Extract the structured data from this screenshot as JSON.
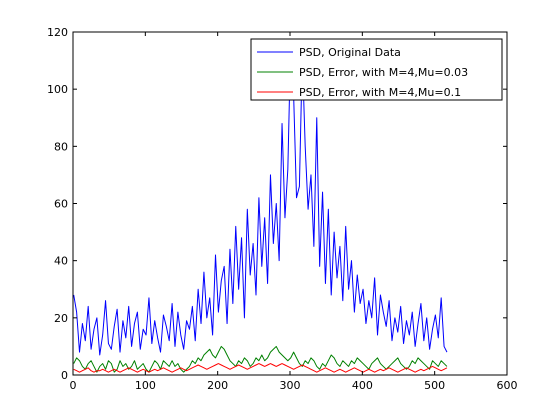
{
  "chart_data": {
    "type": "line",
    "title": "",
    "xlabel": "",
    "ylabel": "",
    "xlim": [
      0,
      600
    ],
    "ylim": [
      0,
      120
    ],
    "xticks": [
      0,
      100,
      200,
      300,
      400,
      500,
      600
    ],
    "yticks": [
      0,
      20,
      40,
      60,
      80,
      100,
      120
    ],
    "grid": false,
    "legend_position": "top-right",
    "series": [
      {
        "name": "PSD, Original Data",
        "color": "#0000ff",
        "x_start": 1,
        "x_step": 4,
        "values": [
          28,
          22,
          8,
          18,
          12,
          24,
          9,
          16,
          20,
          7,
          14,
          26,
          11,
          9,
          17,
          23,
          8,
          19,
          13,
          24,
          10,
          18,
          22,
          9,
          16,
          14,
          27,
          11,
          19,
          13,
          8,
          21,
          17,
          12,
          25,
          10,
          22,
          14,
          9,
          19,
          16,
          24,
          12,
          30,
          18,
          36,
          20,
          27,
          14,
          42,
          22,
          33,
          38,
          18,
          44,
          25,
          52,
          30,
          48,
          20,
          58,
          35,
          46,
          28,
          62,
          38,
          55,
          32,
          70,
          46,
          60,
          40,
          88,
          55,
          72,
          117,
          98,
          62,
          66,
          112,
          80,
          58,
          70,
          45,
          90,
          38,
          64,
          32,
          58,
          28,
          50,
          34,
          45,
          26,
          52,
          30,
          40,
          22,
          35,
          25,
          30,
          18,
          26,
          20,
          34,
          14,
          28,
          22,
          17,
          26,
          12,
          20,
          15,
          24,
          11,
          19,
          14,
          22,
          10,
          18,
          25,
          12,
          20,
          9,
          16,
          21,
          13,
          27,
          10,
          8
        ]
      },
      {
        "name": "PSD, Error, with M=4,Mu=0.03",
        "color": "#008000",
        "x_start": 1,
        "x_step": 4,
        "values": [
          4,
          6,
          5,
          3,
          2,
          4,
          5,
          3,
          1,
          3,
          4,
          2,
          5,
          4,
          1,
          2,
          5,
          3,
          4,
          2,
          3,
          5,
          2,
          3,
          4,
          2,
          1,
          3,
          5,
          4,
          2,
          5,
          4,
          3,
          5,
          3,
          4,
          2,
          1,
          2,
          3,
          5,
          4,
          6,
          5,
          7,
          8,
          9,
          7,
          6,
          8,
          10,
          9,
          7,
          5,
          4,
          3,
          5,
          4,
          6,
          5,
          3,
          4,
          6,
          5,
          7,
          5,
          6,
          8,
          9,
          10,
          8,
          7,
          6,
          5,
          6,
          8,
          6,
          4,
          3,
          5,
          4,
          6,
          5,
          3,
          2,
          4,
          3,
          5,
          7,
          6,
          4,
          3,
          5,
          4,
          3,
          5,
          4,
          6,
          5,
          4,
          3,
          2,
          4,
          5,
          6,
          4,
          3,
          2,
          3,
          4,
          5,
          6,
          4,
          3,
          2,
          3,
          5,
          4,
          6,
          5,
          4,
          3,
          2,
          5,
          4,
          3,
          5,
          4,
          3
        ]
      },
      {
        "name": "PSD, Error, with M=4,Mu=0.1",
        "color": "#ff0000",
        "x_start": 1,
        "x_step": 4,
        "values": [
          2,
          1.5,
          1,
          1.5,
          2,
          2.5,
          1.5,
          1,
          1.5,
          1.5,
          2,
          1.5,
          1,
          1.5,
          2,
          1.5,
          1,
          1.5,
          2,
          2.5,
          2,
          1.5,
          1,
          1.5,
          2,
          1.5,
          1,
          1.5,
          2,
          1.5,
          2,
          2.5,
          2,
          1.5,
          1,
          1.5,
          2,
          2.5,
          2,
          1.5,
          2,
          2.5,
          3,
          3.5,
          3,
          2.5,
          2,
          2.5,
          3,
          3.5,
          4,
          3.5,
          3,
          2.5,
          2,
          2.5,
          3,
          3.5,
          3,
          2.5,
          2,
          2.5,
          3,
          3.5,
          4,
          3.5,
          3,
          3.5,
          4,
          3.5,
          3,
          3.5,
          4,
          3.5,
          3,
          2.5,
          2,
          2.5,
          3,
          3.5,
          3,
          2.5,
          2,
          1.5,
          1,
          1.5,
          2,
          2.5,
          2,
          1.5,
          1,
          1.5,
          2,
          1.5,
          1,
          1.5,
          2,
          2.5,
          2,
          1.5,
          1,
          1.5,
          2,
          1.5,
          1,
          1.5,
          2,
          1.5,
          2,
          2.5,
          2,
          1.5,
          1,
          1.5,
          2,
          2.5,
          2,
          1.5,
          1,
          1.5,
          2,
          1.5,
          2,
          2.5,
          3,
          2.5,
          2,
          1.5,
          2,
          2.5
        ]
      }
    ]
  }
}
